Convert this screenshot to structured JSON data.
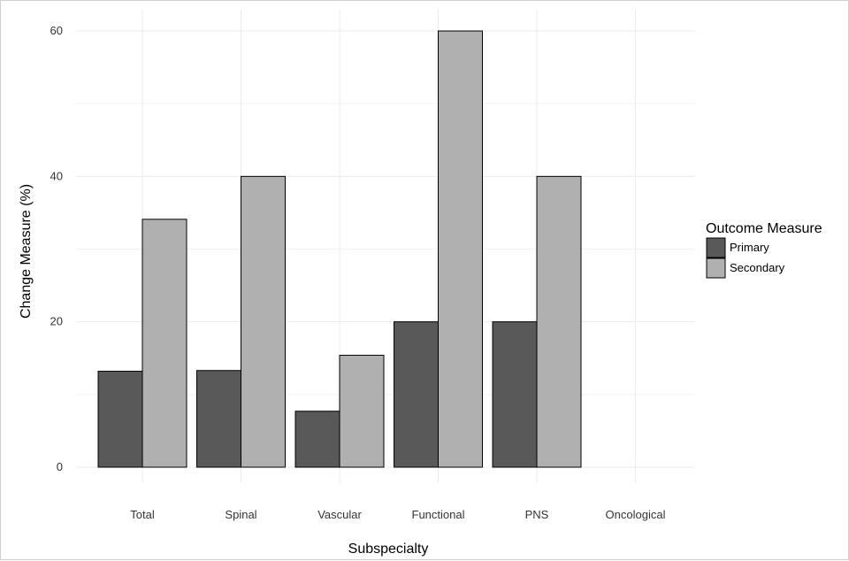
{
  "chart_data": {
    "type": "bar",
    "title": "",
    "xlabel": "Subspecialty",
    "ylabel": "Change Measure (%)",
    "categories": [
      "Total",
      "Spinal",
      "Vascular",
      "Functional",
      "PNS",
      "Oncological"
    ],
    "series": [
      {
        "name": "Primary",
        "values": [
          13.2,
          13.3,
          7.7,
          20,
          20,
          0
        ]
      },
      {
        "name": "Secondary",
        "values": [
          34.1,
          40,
          15.4,
          60,
          40,
          0
        ]
      }
    ],
    "ylim": [
      0,
      60
    ],
    "yticks": [
      0,
      20,
      40,
      60
    ],
    "grid": true,
    "legend": {
      "title": "Outcome Measure",
      "position": "right"
    },
    "colors": {
      "Primary": "#595959",
      "Secondary": "#b0b0b0",
      "gridline": "#ebebeb",
      "bar_outline": "#000000"
    }
  }
}
